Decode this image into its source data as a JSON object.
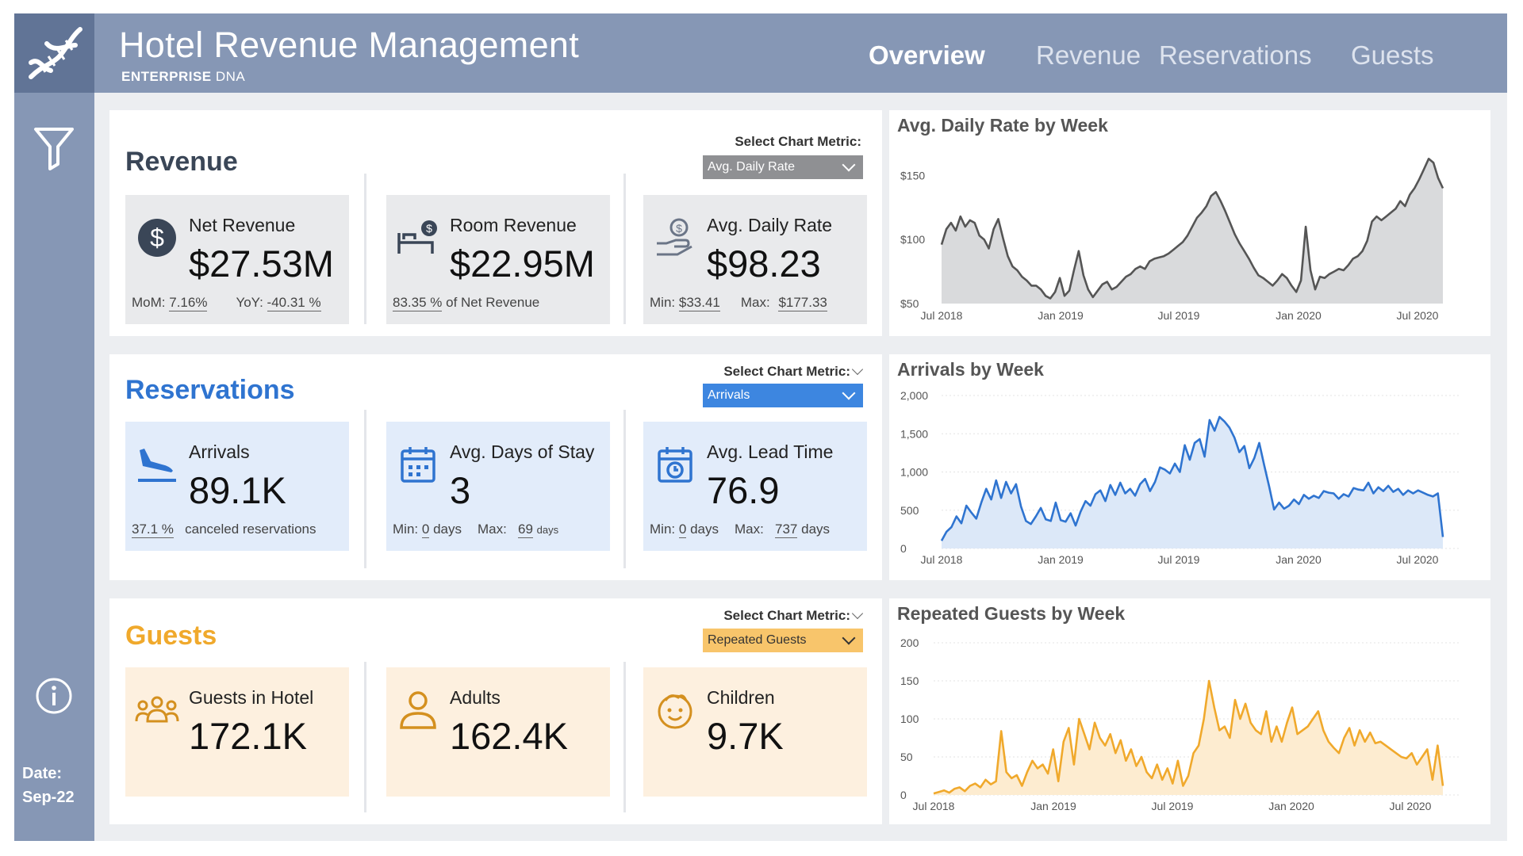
{
  "header": {
    "title": "Hotel Revenue Management",
    "subtitle_bold": "ENTERPRISE",
    "subtitle_light": " DNA",
    "nav": [
      "Overview",
      "Revenue",
      "Reservations",
      "Guests"
    ],
    "active_tab": "Overview"
  },
  "sidebar": {
    "logo_icon": "dna-icon",
    "filter_icon": "filter-icon",
    "info_icon": "info-icon",
    "date_label": "Date:",
    "date_value": "Sep-22"
  },
  "revenue": {
    "title": "Revenue",
    "metric_label": "Select Chart Metric:",
    "metric_value": "Avg. Daily Rate",
    "accent": "#3a4657",
    "cards": {
      "net": {
        "label": "Net Revenue",
        "value": "$27.53M",
        "mom_label": "MoM:",
        "mom": "7.16%",
        "yoy_label": "YoY:",
        "yoy": "-40.31 %"
      },
      "room": {
        "label": "Room Revenue",
        "value": "$22.95M",
        "pct": "83.35 %",
        "pct_suffix": " of Net Revenue"
      },
      "adr": {
        "label": "Avg. Daily Rate",
        "value": "$98.23",
        "min_label": "Min:",
        "min": "$33.41",
        "max_label": "Max:",
        "max": "$177.33"
      }
    },
    "chart_title": "Avg. Daily Rate by Week"
  },
  "reservations": {
    "title": "Reservations",
    "metric_label": "Select Chart Metric:",
    "metric_value": "Arrivals",
    "accent": "#2f74d0",
    "cards": {
      "arrivals": {
        "label": "Arrivals",
        "value": "89.1K",
        "pct": "37.1 %",
        "pct_suffix": "canceled reservations"
      },
      "stay": {
        "label": "Avg. Days of Stay",
        "value": "3",
        "min_label": "Min:",
        "min": "0",
        "min_unit": "days",
        "max_label": "Max:",
        "max": "69",
        "max_unit": "days"
      },
      "lead": {
        "label": "Avg. Lead Time",
        "value": "76.9",
        "min_label": "Min:",
        "min": "0",
        "min_unit": "days",
        "max_label": "Max:",
        "max": "737",
        "max_unit": "days"
      }
    },
    "chart_title": "Arrivals by Week"
  },
  "guests": {
    "title": "Guests",
    "metric_label": "Select Chart Metric:",
    "metric_value": "Repeated Guests",
    "accent": "#f0a92c",
    "cards": {
      "inhotel": {
        "label": "Guests in Hotel",
        "value": "172.1K"
      },
      "adults": {
        "label": "Adults",
        "value": "162.4K"
      },
      "children": {
        "label": "Children",
        "value": "9.7K"
      }
    },
    "chart_title": "Repeated Guests by Week"
  },
  "chart_data": [
    {
      "type": "area",
      "title": "Avg. Daily Rate by Week",
      "x_ticks": [
        "Jul 2018",
        "Jan 2019",
        "Jul 2019",
        "Jan 2020",
        "Jul 2020"
      ],
      "y_ticks": [
        "$50",
        "$100",
        "$150"
      ],
      "ylim": [
        50,
        170
      ],
      "color": "#555555",
      "fill": "#d9dadc",
      "x_start": "2018-07",
      "values": [
        96,
        108,
        113,
        107,
        118,
        110,
        115,
        113,
        103,
        100,
        93,
        108,
        116,
        101,
        87,
        79,
        76,
        71,
        68,
        64,
        64,
        61,
        56,
        54,
        59,
        70,
        56,
        60,
        76,
        91,
        72,
        61,
        55,
        60,
        65,
        67,
        61,
        63,
        67,
        71,
        73,
        77,
        79,
        77,
        83,
        85,
        86,
        87,
        89,
        92,
        95,
        98,
        103,
        110,
        117,
        121,
        126,
        134,
        137,
        130,
        122,
        113,
        104,
        97,
        91,
        85,
        78,
        72,
        70,
        67,
        64,
        68,
        73,
        70,
        64,
        59,
        68,
        110,
        76,
        61,
        71,
        70,
        73,
        75,
        77,
        76,
        80,
        85,
        87,
        91,
        99,
        114,
        118,
        115,
        118,
        121,
        124,
        130,
        126,
        135,
        140,
        147,
        155,
        163,
        160,
        148,
        140
      ]
    },
    {
      "type": "area",
      "title": "Arrivals by Week",
      "x_ticks": [
        "Jul 2018",
        "Jan 2019",
        "Jul 2019",
        "Jan 2020",
        "Jul 2020"
      ],
      "y_ticks": [
        "0",
        "500",
        "1,000",
        "1,500",
        "2,000"
      ],
      "ylim": [
        0,
        2000
      ],
      "color": "#2f74d0",
      "fill": "#dce8f8",
      "values": [
        100,
        220,
        280,
        420,
        330,
        560,
        470,
        390,
        600,
        780,
        640,
        890,
        660,
        870,
        720,
        840,
        550,
        360,
        320,
        420,
        530,
        380,
        360,
        600,
        370,
        350,
        460,
        300,
        480,
        620,
        560,
        710,
        760,
        620,
        830,
        700,
        860,
        720,
        780,
        690,
        840,
        910,
        750,
        870,
        1060,
        1030,
        980,
        1110,
        1000,
        1350,
        1160,
        1380,
        1430,
        1200,
        1680,
        1540,
        1720,
        1660,
        1580,
        1450,
        1260,
        1340,
        1050,
        1180,
        1380,
        1090,
        810,
        510,
        600,
        520,
        560,
        640,
        580,
        700,
        650,
        690,
        660,
        750,
        730,
        720,
        650,
        710,
        680,
        790,
        770,
        760,
        860,
        720,
        800,
        750,
        820,
        740,
        780,
        700,
        760,
        720,
        760,
        730,
        700,
        680,
        720,
        150
      ]
    },
    {
      "type": "area",
      "title": "Repeated Guests by Week",
      "x_ticks": [
        "Jul 2018",
        "Jan 2019",
        "Jul 2019",
        "Jan 2020",
        "Jul 2020"
      ],
      "y_ticks": [
        "0",
        "50",
        "100",
        "150",
        "200"
      ],
      "ylim": [
        0,
        200
      ],
      "color": "#f0a92c",
      "fill": "#fdecd0",
      "values": [
        2,
        4,
        6,
        3,
        8,
        10,
        5,
        12,
        15,
        10,
        20,
        14,
        18,
        84,
        30,
        22,
        26,
        12,
        30,
        45,
        35,
        40,
        28,
        60,
        18,
        70,
        88,
        40,
        100,
        80,
        60,
        95,
        75,
        65,
        80,
        55,
        72,
        45,
        60,
        38,
        50,
        30,
        22,
        40,
        20,
        35,
        15,
        45,
        12,
        25,
        55,
        65,
        100,
        150,
        115,
        85,
        90,
        75,
        125,
        100,
        120,
        95,
        85,
        80,
        110,
        70,
        90,
        70,
        95,
        115,
        80,
        85,
        90,
        100,
        110,
        85,
        70,
        62,
        55,
        75,
        88,
        65,
        85,
        70,
        82,
        68,
        70,
        65,
        60,
        55,
        50,
        48,
        55,
        40,
        50,
        60,
        20,
        65,
        12
      ]
    }
  ]
}
